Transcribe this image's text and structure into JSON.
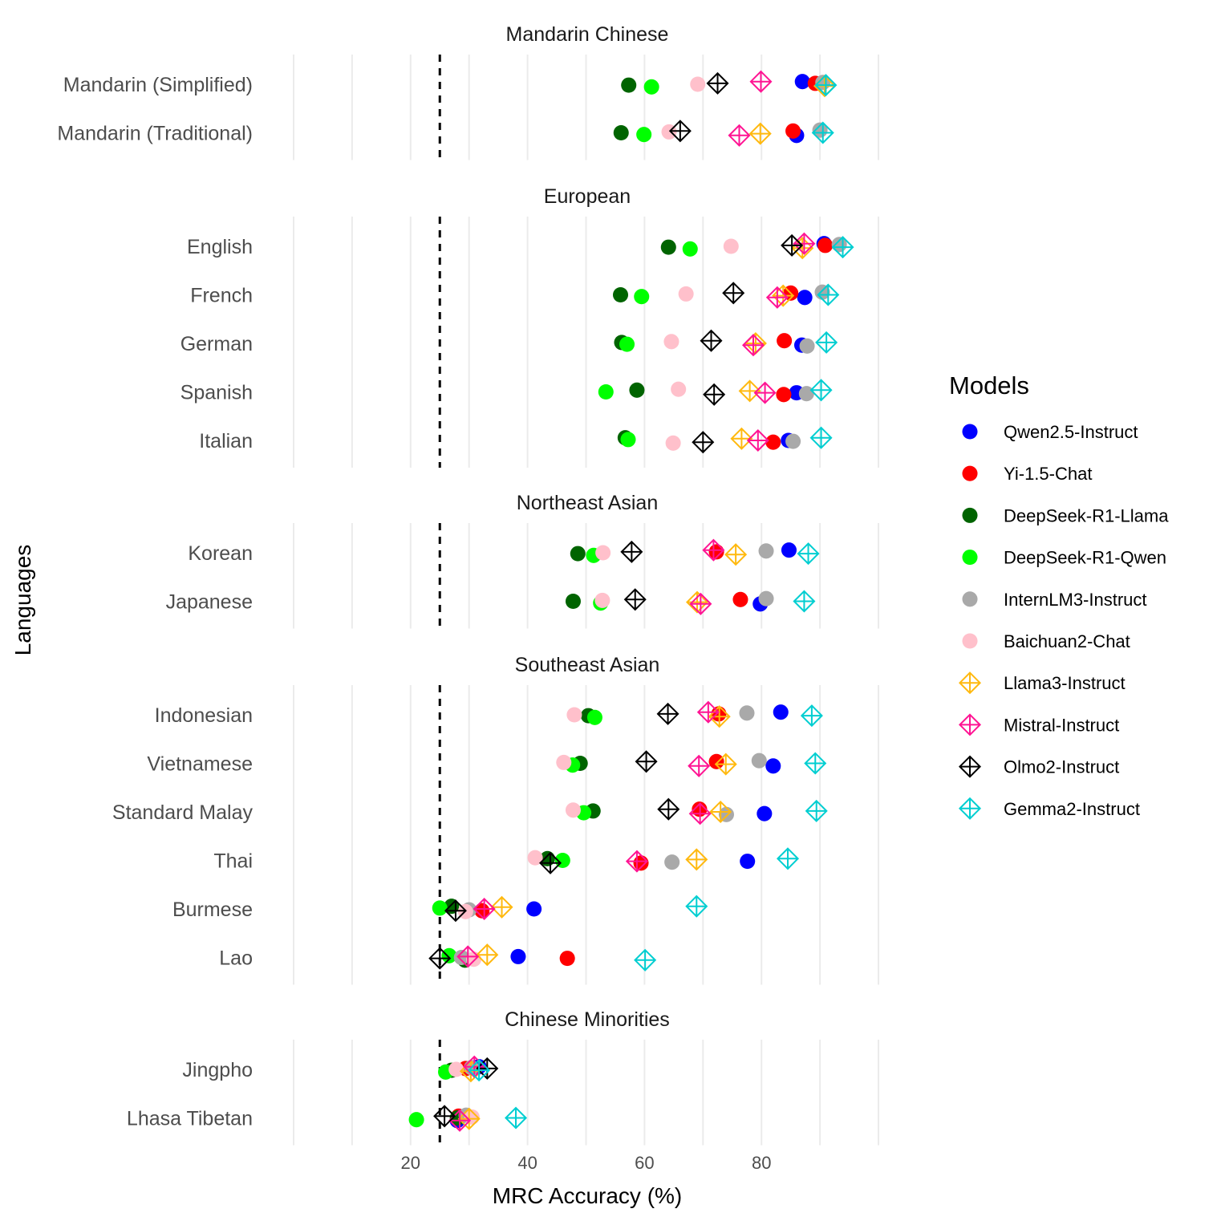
{
  "chart_data": {
    "type": "scatter",
    "xlabel": "MRC Accuracy (%)",
    "ylabel": "Languages",
    "x_ticks": [
      20,
      40,
      60,
      80
    ],
    "xlim": [
      0,
      100
    ],
    "reference_line": 25,
    "grid": true,
    "legend": {
      "title": "Models",
      "position": "right",
      "entries": [
        {
          "name": "Qwen2.5-Instruct",
          "color": "#0000ff",
          "shape": "circle"
        },
        {
          "name": "Yi-1.5-Chat",
          "color": "#ff0000",
          "shape": "circle"
        },
        {
          "name": "DeepSeek-R1-Llama",
          "color": "#006400",
          "shape": "circle"
        },
        {
          "name": "DeepSeek-R1-Qwen",
          "color": "#00ff00",
          "shape": "circle"
        },
        {
          "name": "InternLM3-Instruct",
          "color": "#a9a9a9",
          "shape": "circle"
        },
        {
          "name": "Baichuan2-Chat",
          "color": "#ffc0cb",
          "shape": "circle"
        },
        {
          "name": "Llama3-Instruct",
          "color": "#ffb90f",
          "shape": "diamond-plus"
        },
        {
          "name": "Mistral-Instruct",
          "color": "#ff1493",
          "shape": "diamond-plus"
        },
        {
          "name": "Olmo2-Instruct",
          "color": "#000000",
          "shape": "diamond-plus"
        },
        {
          "name": "Gemma2-Instruct",
          "color": "#00ced1",
          "shape": "diamond-plus"
        }
      ]
    },
    "panels": [
      {
        "title": "Mandarin Chinese",
        "rows": [
          {
            "language": "Mandarin (Simplified)",
            "values": [
              87.0,
              89.2,
              57.3,
              61.2,
              90.5,
              69.1,
              90.8,
              79.9,
              72.5,
              91.0
            ]
          },
          {
            "language": "Mandarin (Traditional)",
            "values": [
              86.0,
              85.4,
              56.0,
              59.9,
              90.0,
              64.2,
              79.8,
              76.2,
              66.1,
              90.5
            ]
          }
        ]
      },
      {
        "title": "European",
        "rows": [
          {
            "language": "English",
            "values": [
              90.7,
              90.9,
              64.1,
              67.8,
              93.3,
              74.8,
              87.0,
              87.3,
              85.2,
              93.9
            ]
          },
          {
            "language": "French",
            "values": [
              87.4,
              85.0,
              55.9,
              59.5,
              90.4,
              67.1,
              83.7,
              82.7,
              75.2,
              91.4
            ]
          },
          {
            "language": "German",
            "values": [
              86.9,
              83.9,
              56.1,
              57.0,
              87.8,
              64.6,
              79.0,
              78.6,
              71.4,
              91.1
            ]
          },
          {
            "language": "Spanish",
            "values": [
              86.0,
              83.8,
              58.7,
              53.4,
              87.7,
              65.8,
              78.0,
              80.6,
              71.9,
              90.2
            ]
          },
          {
            "language": "Italian",
            "values": [
              84.6,
              82.0,
              56.7,
              57.2,
              85.4,
              64.9,
              76.6,
              79.4,
              70.0,
              90.2
            ]
          }
        ]
      },
      {
        "title": "Northeast Asian",
        "rows": [
          {
            "language": "Korean",
            "values": [
              84.7,
              72.3,
              48.6,
              51.3,
              80.8,
              52.9,
              75.6,
              71.8,
              57.8,
              88.0
            ]
          },
          {
            "language": "Japanese",
            "values": [
              79.8,
              76.4,
              47.8,
              52.5,
              80.8,
              52.8,
              69.0,
              69.6,
              58.4,
              87.3
            ]
          }
        ]
      },
      {
        "title": "Southeast Asian",
        "rows": [
          {
            "language": "Indonesian",
            "values": [
              83.3,
              72.7,
              50.4,
              51.5,
              77.5,
              48.0,
              72.8,
              70.9,
              64.0,
              88.6
            ]
          },
          {
            "language": "Vietnamese",
            "values": [
              82.0,
              72.3,
              49.0,
              47.7,
              79.6,
              46.2,
              73.9,
              69.3,
              60.3,
              89.2
            ]
          },
          {
            "language": "Standard Malay",
            "values": [
              80.5,
              69.4,
              51.2,
              49.6,
              74.0,
              47.8,
              73.0,
              69.5,
              64.1,
              89.4
            ]
          },
          {
            "language": "Thai",
            "values": [
              77.6,
              59.4,
              43.4,
              46.0,
              64.7,
              41.3,
              68.9,
              58.7,
              43.9,
              84.5
            ]
          },
          {
            "language": "Burmese",
            "values": [
              41.1,
              32.2,
              27.0,
              25.0,
              30.0,
              29.4,
              35.6,
              32.6,
              27.7,
              68.9
            ]
          },
          {
            "language": "Lao",
            "values": [
              38.4,
              46.8,
              29.3,
              26.6,
              28.7,
              30.8,
              33.1,
              29.8,
              25.0,
              60.1
            ]
          }
        ]
      },
      {
        "title": "Chinese Minorities",
        "rows": [
          {
            "language": "Jingpho",
            "values": [
              31.7,
              29.4,
              27.0,
              26.0,
              30.4,
              27.8,
              30.3,
              30.9,
              33.1,
              31.7
            ]
          },
          {
            "language": "Lhasa Tibetan",
            "values": [
              28.0,
              28.2,
              28.0,
              21.0,
              29.5,
              30.5,
              30.0,
              28.4,
              25.8,
              38.0
            ]
          }
        ]
      }
    ]
  }
}
